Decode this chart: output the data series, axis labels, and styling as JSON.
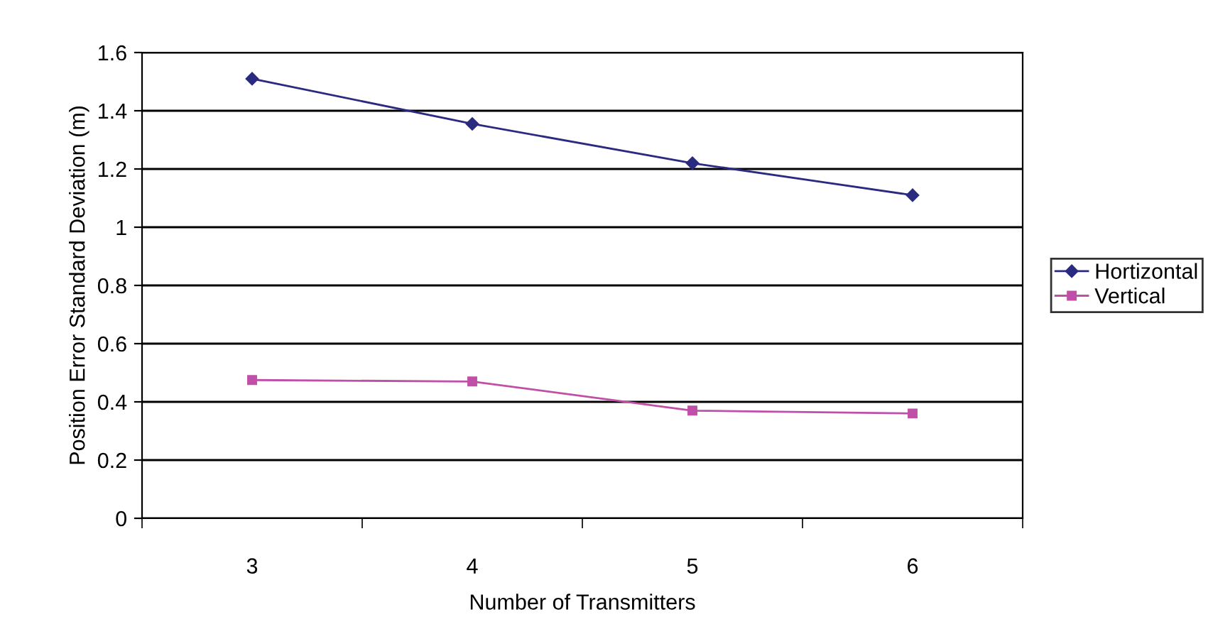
{
  "chart_data": {
    "type": "line",
    "xlabel": "Number of Transmitters",
    "ylabel": "Position Error Standard Deviation (m)",
    "categories": [
      "3",
      "4",
      "5",
      "6"
    ],
    "series": [
      {
        "name": "Hortizontal",
        "color": "#2a2a80",
        "marker": "diamond",
        "values": [
          1.51,
          1.355,
          1.22,
          1.11
        ]
      },
      {
        "name": "Vertical",
        "color": "#c04fa8",
        "marker": "square",
        "values": [
          0.475,
          0.47,
          0.37,
          0.36
        ]
      }
    ],
    "ylim": [
      0,
      1.6
    ],
    "yticks": [
      0,
      0.2,
      0.4,
      0.6,
      0.8,
      1,
      1.2,
      1.4,
      1.6
    ],
    "grid": "y",
    "legend": "right"
  }
}
